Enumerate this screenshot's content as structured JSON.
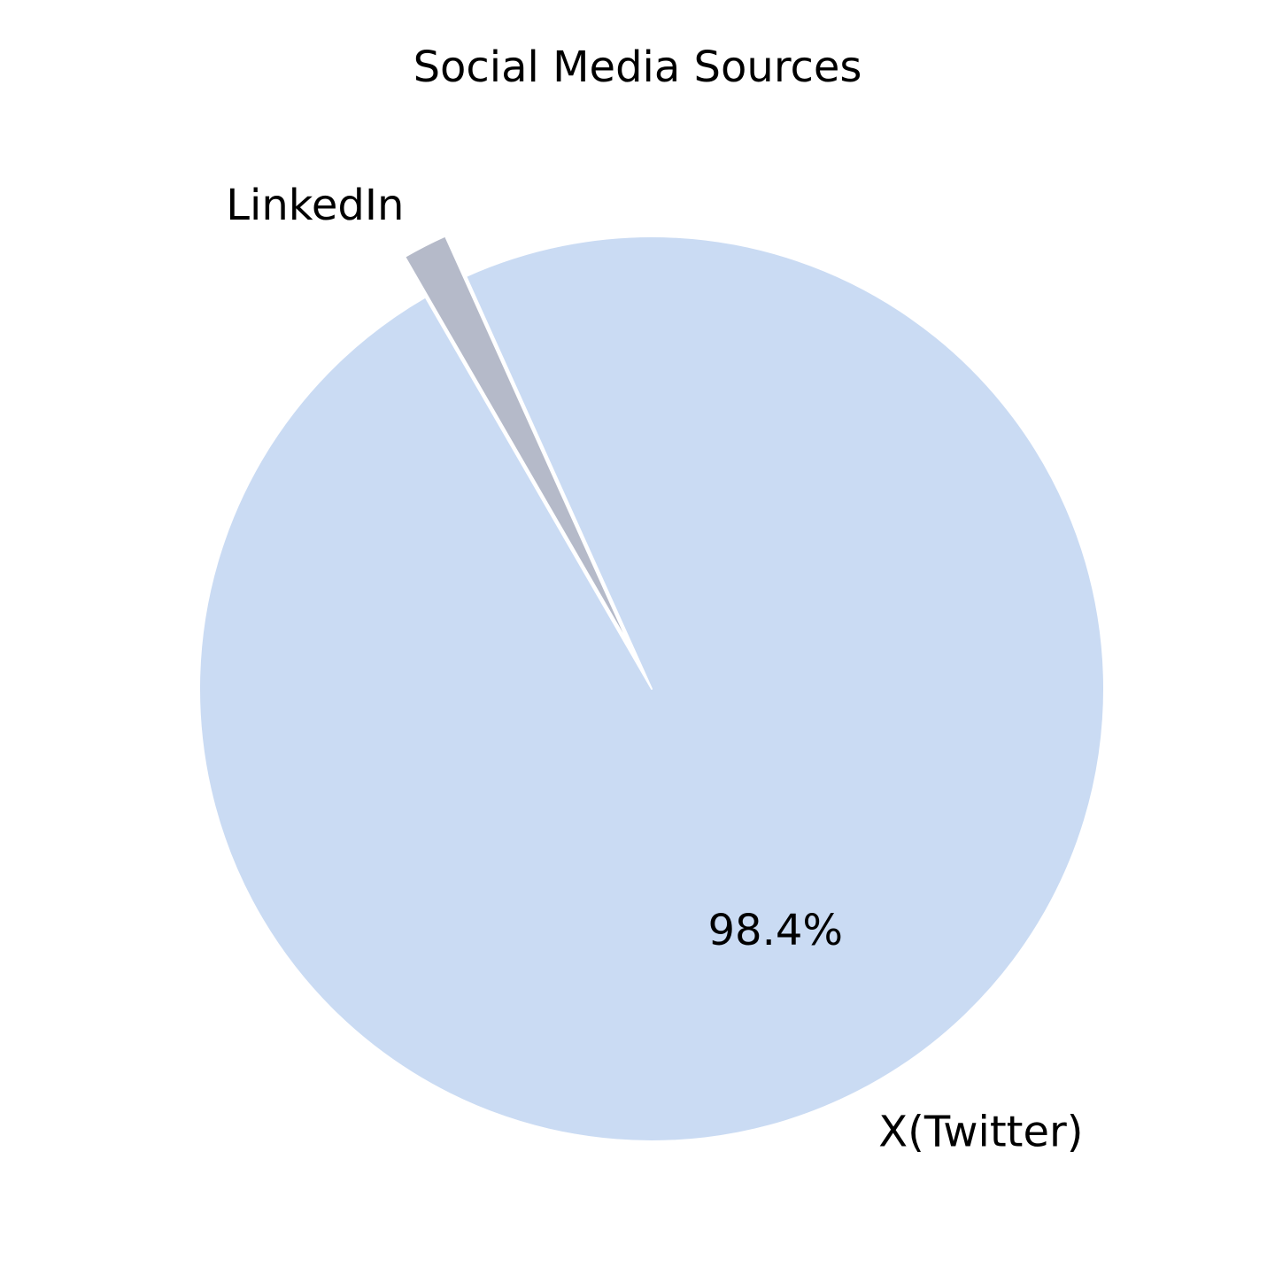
{
  "chart_data": {
    "type": "pie",
    "title": "Social Media Sources",
    "slices": [
      {
        "label": "X(Twitter)",
        "value": 98.4,
        "pct_label": "98.4%",
        "color": "#cadbf3",
        "exploded": false
      },
      {
        "label": "LinkedIn",
        "value": 1.6,
        "pct_label": "",
        "color": "#b5bac9",
        "exploded": true
      }
    ],
    "start_angle_deg": 120,
    "direction": "counterclockwise",
    "edge_color": "#ffffff"
  }
}
